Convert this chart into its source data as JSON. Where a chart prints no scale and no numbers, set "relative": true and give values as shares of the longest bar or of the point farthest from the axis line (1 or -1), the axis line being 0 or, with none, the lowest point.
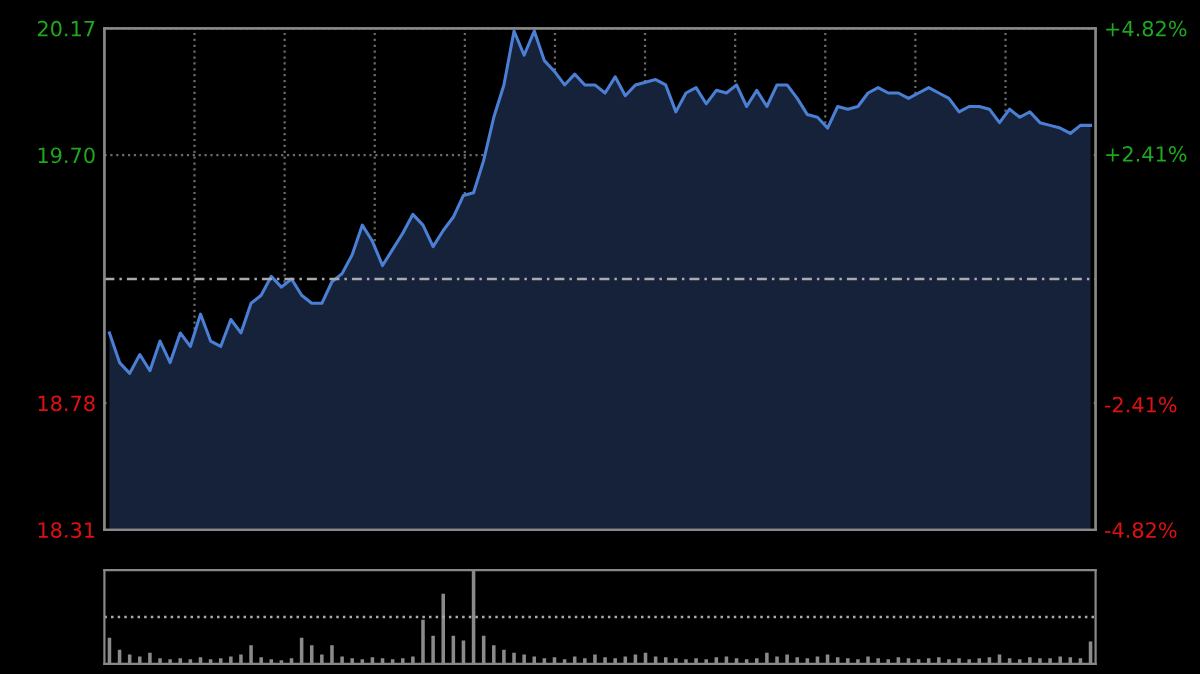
{
  "chart_data": [
    {
      "type": "area",
      "categories": [
        null,
        null,
        null,
        null,
        null,
        null,
        null,
        null,
        null,
        null,
        null,
        null,
        null,
        null,
        null,
        null,
        null,
        null,
        null,
        null,
        null,
        null,
        null,
        null,
        null,
        null,
        null,
        null,
        null,
        null,
        null,
        null,
        null,
        null,
        null,
        null,
        null,
        null,
        null,
        null,
        null,
        null,
        null,
        null,
        null,
        null,
        null,
        null,
        null,
        null,
        null,
        null,
        null,
        null,
        null,
        null,
        null,
        null,
        null,
        null,
        null,
        null,
        null,
        null,
        null,
        null,
        null,
        null,
        null,
        null,
        null,
        null,
        null,
        null,
        null,
        null,
        null,
        null,
        null,
        null,
        null,
        null,
        null,
        null,
        null,
        null,
        null,
        null,
        null,
        null,
        null,
        null,
        null,
        null,
        null,
        null,
        null,
        null
      ],
      "series": [
        {
          "color": "#4a7fd4",
          "values": [
            19.04,
            18.93,
            18.89,
            18.96,
            18.9,
            19.01,
            18.93,
            19.04,
            18.99,
            19.11,
            19.01,
            18.99,
            19.09,
            19.04,
            19.15,
            19.18,
            19.25,
            19.21,
            19.24,
            19.18,
            19.15,
            19.15,
            19.23,
            19.26,
            19.33,
            19.44,
            19.38,
            19.29,
            19.35,
            19.41,
            19.48,
            19.44,
            19.36,
            19.42,
            19.47,
            19.55,
            19.56,
            19.68,
            19.84,
            19.96,
            20.16,
            20.07,
            20.16,
            20.05,
            20.01,
            19.96,
            20.0,
            19.96,
            19.96,
            19.93,
            19.99,
            19.92,
            19.96,
            19.97,
            19.98,
            19.96,
            19.86,
            19.93,
            19.95,
            19.89,
            19.94,
            19.93,
            19.96,
            19.88,
            19.94,
            19.88,
            19.96,
            19.96,
            19.91,
            19.85,
            19.84,
            19.8,
            19.88,
            19.87,
            19.88,
            19.93,
            19.95,
            19.93,
            19.93,
            19.91,
            19.93,
            19.95,
            19.93,
            19.91,
            19.86,
            19.88,
            19.88,
            19.87,
            19.82,
            19.87,
            19.84,
            19.86,
            19.82,
            19.81,
            19.8,
            19.78,
            19.81,
            19.81
          ]
        }
      ],
      "ylim": [
        18.31,
        20.17
      ],
      "yticks": [
        18.31,
        18.78,
        {
          "value": 19.7,
          "label": "19.70"
        },
        20.17
      ],
      "y2lim": [
        -4.82,
        4.82
      ],
      "y2ticks": [
        {
          "value": -4.82,
          "label": "-4.82%"
        },
        {
          "value": -2.41,
          "label": "-2.41%"
        },
        {
          "value": 2.41,
          "label": "+2.41%"
        },
        {
          "value": 4.82,
          "label": "+4.82%"
        }
      ],
      "ref_lines": [
        {
          "axis": "y",
          "value": 19.24,
          "label": null,
          "line_style": "dashed"
        }
      ],
      "grid": true,
      "tick_labels": "y"
    },
    {
      "type": "bar",
      "relative": true,
      "categories": [
        null,
        null,
        null,
        null,
        null,
        null,
        null,
        null,
        null,
        null,
        null,
        null,
        null,
        null,
        null,
        null,
        null,
        null,
        null,
        null,
        null,
        null,
        null,
        null,
        null,
        null,
        null,
        null,
        null,
        null,
        null,
        null,
        null,
        null,
        null,
        null,
        null,
        null,
        null,
        null,
        null,
        null,
        null,
        null,
        null,
        null,
        null,
        null,
        null,
        null,
        null,
        null,
        null,
        null,
        null,
        null,
        null,
        null,
        null,
        null,
        null,
        null,
        null,
        null,
        null,
        null,
        null,
        null,
        null,
        null,
        null,
        null,
        null,
        null,
        null,
        null,
        null,
        null,
        null,
        null,
        null,
        null,
        null,
        null,
        null,
        null,
        null,
        null,
        null,
        null,
        null,
        null,
        null,
        null,
        null,
        null,
        null,
        null
      ],
      "series": [
        {
          "color": "#8a8a8a",
          "values": [
            0.28,
            0.15,
            0.1,
            0.08,
            0.12,
            0.06,
            0.05,
            0.06,
            0.05,
            0.07,
            0.05,
            0.06,
            0.08,
            0.1,
            0.2,
            0.07,
            0.05,
            0.04,
            0.06,
            0.28,
            0.2,
            0.1,
            0.2,
            0.08,
            0.06,
            0.05,
            0.07,
            0.06,
            0.05,
            0.06,
            0.08,
            0.47,
            0.3,
            0.75,
            0.3,
            0.25,
            1.0,
            0.3,
            0.2,
            0.15,
            0.12,
            0.1,
            0.08,
            0.06,
            0.07,
            0.05,
            0.08,
            0.06,
            0.1,
            0.07,
            0.06,
            0.08,
            0.1,
            0.12,
            0.08,
            0.07,
            0.06,
            0.05,
            0.06,
            0.05,
            0.07,
            0.08,
            0.06,
            0.05,
            0.06,
            0.12,
            0.08,
            0.1,
            0.07,
            0.06,
            0.08,
            0.1,
            0.07,
            0.06,
            0.05,
            0.08,
            0.06,
            0.05,
            0.07,
            0.06,
            0.05,
            0.06,
            0.07,
            0.05,
            0.06,
            0.05,
            0.06,
            0.07,
            0.1,
            0.06,
            0.05,
            0.07,
            0.06,
            0.06,
            0.08,
            0.07,
            0.06,
            0.24
          ]
        }
      ],
      "ref_lines": [
        {
          "axis": "y",
          "value": 0.5,
          "label": null,
          "line_style": "dotted"
        }
      ],
      "tick_labels": false
    }
  ]
}
